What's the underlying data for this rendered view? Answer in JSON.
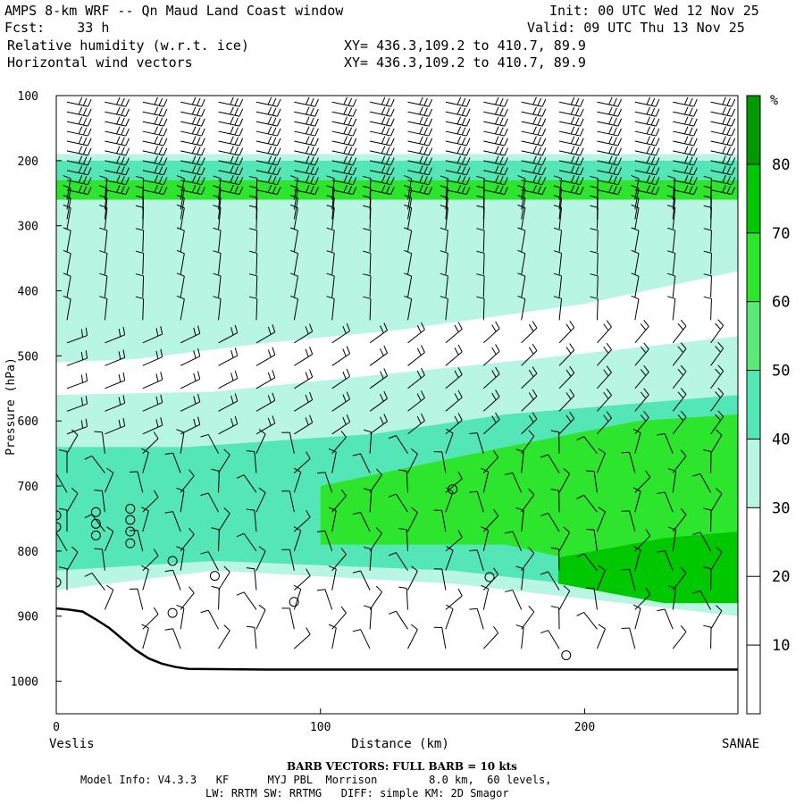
{
  "header": {
    "title": "AMPS 8-km WRF -- Qn Maud Land Coast window",
    "fcst": "Fcst:    33 h",
    "field1": "Relative humidity (w.r.t. ice)",
    "field2": "Horizontal wind vectors",
    "init": "Init: 00 UTC Wed 12 Nov 25",
    "valid": "Valid: 09 UTC Thu 13 Nov 25",
    "xy1": "XY= 436.3,109.2 to 410.7, 89.9",
    "xy2": "XY= 436.3,109.2 to 410.7, 89.9"
  },
  "chart_data": {
    "type": "heatmap",
    "title": "Relative humidity (w.r.t. ice)",
    "xlabel": "Distance (km)",
    "ylabel": "Pressure (hPa)",
    "xlim": [
      0,
      258
    ],
    "ylim": [
      1050,
      100
    ],
    "x_ticks": [
      0,
      100,
      200
    ],
    "y_ticks": [
      100,
      200,
      300,
      400,
      500,
      600,
      700,
      800,
      900,
      1000
    ],
    "x_end_labels": {
      "left": "Veslis",
      "right": "SANAE"
    },
    "colorbar": {
      "unit": "%",
      "levels": [
        10,
        20,
        30,
        40,
        50,
        60,
        70,
        80
      ],
      "colors": [
        "#ffffff",
        "#ffffff",
        "#ffffff",
        "#b8f5e3",
        "#55e6b8",
        "#5de87a",
        "#2ee52e",
        "#00c800",
        "#009900"
      ]
    },
    "terrain_hPa": [
      [
        0,
        888
      ],
      [
        5,
        890
      ],
      [
        10,
        893
      ],
      [
        15,
        905
      ],
      [
        20,
        918
      ],
      [
        25,
        935
      ],
      [
        30,
        952
      ],
      [
        35,
        965
      ],
      [
        40,
        973
      ],
      [
        45,
        978
      ],
      [
        50,
        981
      ],
      [
        80,
        982
      ],
      [
        120,
        982
      ],
      [
        160,
        982
      ],
      [
        200,
        982
      ],
      [
        258,
        982
      ]
    ],
    "rh_bands": [
      {
        "rh": 35,
        "top": [
          [
            0,
            190
          ],
          [
            258,
            190
          ]
        ],
        "bottom": [
          [
            0,
            300
          ],
          [
            120,
            305
          ],
          [
            200,
            310
          ],
          [
            258,
            315
          ]
        ]
      },
      {
        "rh": 65,
        "top": [
          [
            0,
            215
          ],
          [
            258,
            215
          ]
        ],
        "bottom": [
          [
            0,
            260
          ],
          [
            258,
            260
          ]
        ]
      },
      {
        "rh": 45,
        "top": [
          [
            0,
            200
          ],
          [
            258,
            200
          ]
        ],
        "bottom": [
          [
            0,
            230
          ],
          [
            258,
            230
          ]
        ]
      },
      {
        "rh": 35,
        "top": [
          [
            0,
            300
          ],
          [
            258,
            300
          ]
        ],
        "bottom": [
          [
            0,
            510
          ],
          [
            30,
            505
          ],
          [
            80,
            480
          ],
          [
            130,
            460
          ],
          [
            200,
            420
          ],
          [
            258,
            370
          ]
        ]
      },
      {
        "rh": 35,
        "top": [
          [
            0,
            560
          ],
          [
            60,
            555
          ],
          [
            120,
            530
          ],
          [
            180,
            505
          ],
          [
            258,
            470
          ]
        ],
        "bottom": [
          [
            0,
            860
          ],
          [
            60,
            830
          ],
          [
            150,
            850
          ],
          [
            258,
            900
          ]
        ]
      },
      {
        "rh": 45,
        "top": [
          [
            0,
            640
          ],
          [
            50,
            640
          ],
          [
            120,
            620
          ],
          [
            170,
            590
          ],
          [
            258,
            560
          ]
        ],
        "bottom": [
          [
            0,
            830
          ],
          [
            60,
            815
          ],
          [
            150,
            830
          ],
          [
            258,
            880
          ]
        ]
      },
      {
        "rh": 65,
        "top": [
          [
            100,
            700
          ],
          [
            170,
            640
          ],
          [
            220,
            600
          ],
          [
            258,
            590
          ]
        ],
        "bottom": [
          [
            100,
            790
          ],
          [
            170,
            790
          ],
          [
            258,
            870
          ]
        ]
      },
      {
        "rh": 75,
        "top": [
          [
            190,
            810
          ],
          [
            230,
            780
          ],
          [
            258,
            770
          ]
        ],
        "bottom": [
          [
            190,
            850
          ],
          [
            230,
            880
          ],
          [
            258,
            880
          ]
        ]
      }
    ]
  },
  "axes": {
    "y_ticks": [
      "100",
      "200",
      "300",
      "400",
      "500",
      "600",
      "700",
      "800",
      "900",
      "1000"
    ],
    "x_ticks": [
      "0",
      "100",
      "200"
    ],
    "xlabel": "Distance (km)",
    "ylabel": "Pressure (hPa)",
    "left_station": "Veslis",
    "right_station": "SANAE"
  },
  "colorbar_labels": {
    "unit": "%",
    "values": [
      "80",
      "70",
      "60",
      "50",
      "40",
      "30",
      "20",
      "10"
    ]
  },
  "footer": {
    "barb_note": "BARB VECTORS:  FULL BARB = 10 kts",
    "model_info": "Model Info: V4.3.3   KF      MYJ PBL  Morrison        8.0 km,  60 levels,",
    "physics": "LW: RRTM SW: RRTMG   DIFF: simple KM: 2D Smagor"
  }
}
